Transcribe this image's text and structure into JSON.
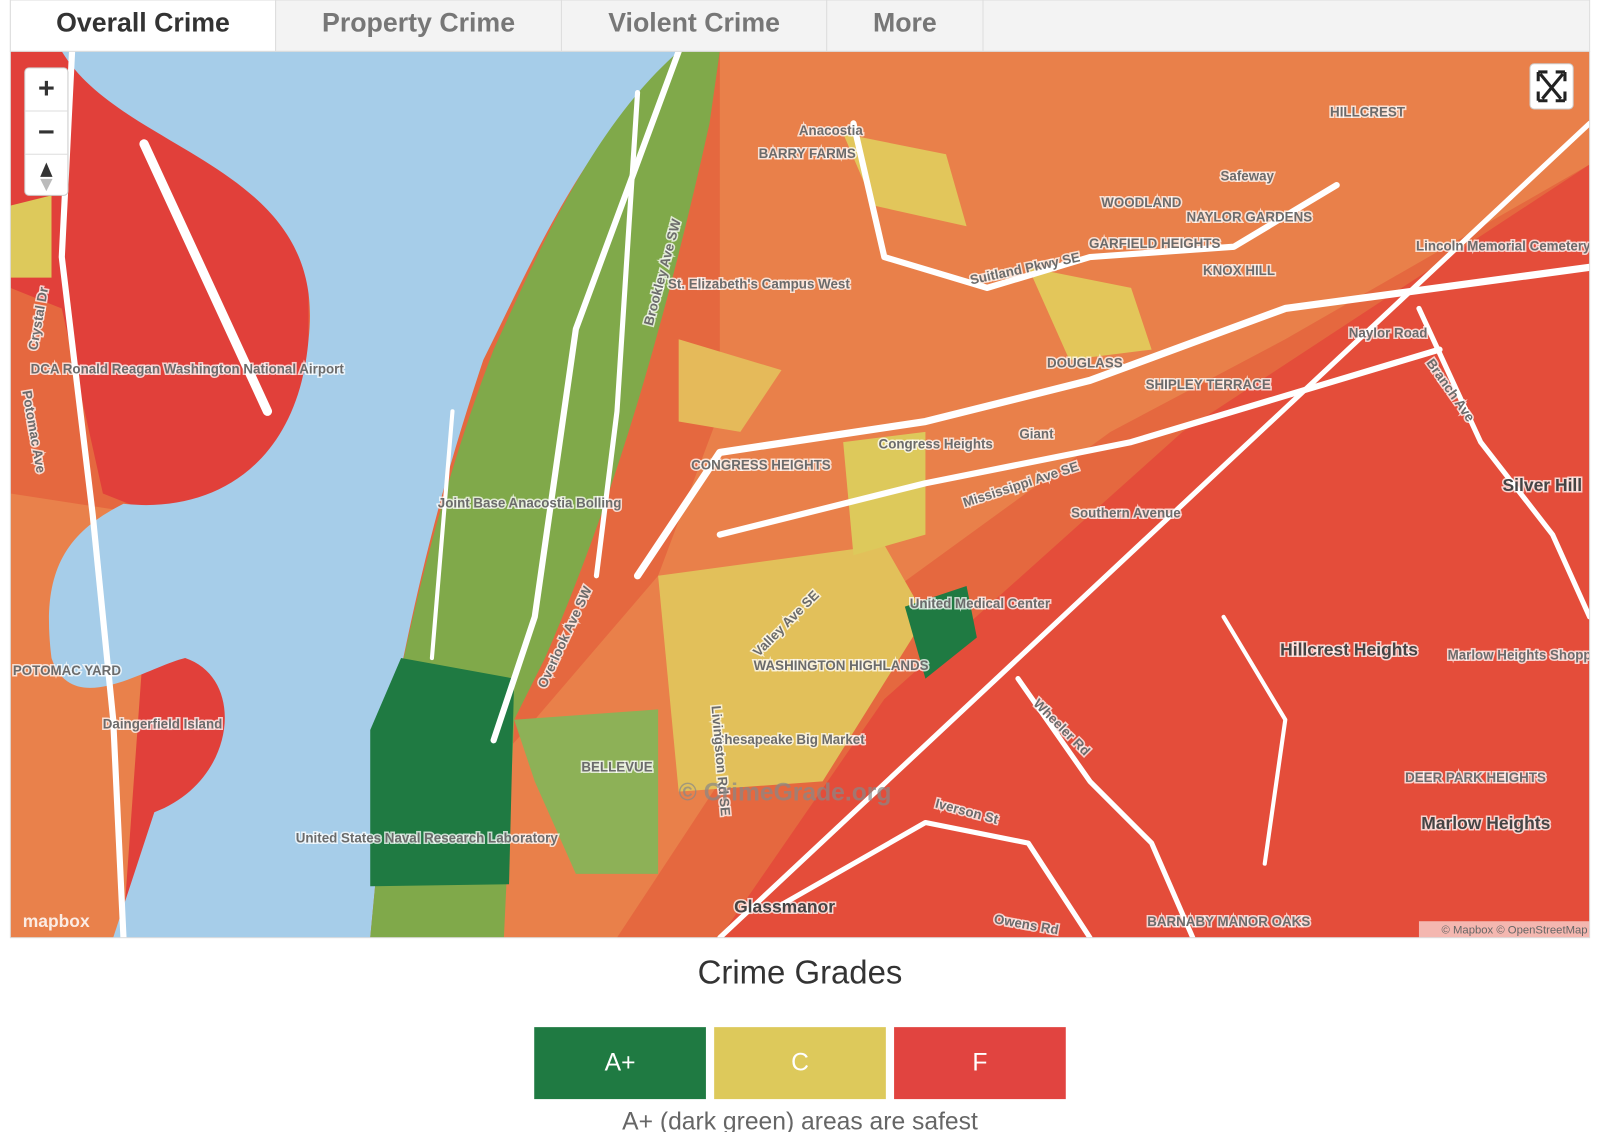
{
  "tabs": [
    "Overall Crime",
    "Property Crime",
    "Violent Crime",
    "More"
  ],
  "map": {
    "controls": {
      "zoom_in": "+",
      "zoom_out": "−"
    },
    "labels": [
      "Silver Hill",
      "Hillcrest Heights",
      "Marlow Heights",
      "Glassmanor",
      "WASHINGTON HIGHLANDS",
      "CONGRESS HEIGHTS",
      "BELLEVUE",
      "DOUGLASS",
      "SHIPLEY TERRACE",
      "WOODLAND",
      "GARFIELD HEIGHTS",
      "NAYLOR GARDENS",
      "KNOX HILL",
      "HILLCREST",
      "BARRY FARMS",
      "Anacostia",
      "St. Elizabeth's Campus West",
      "Joint Base Anacostia Bolling",
      "United States Naval Research Laboratory",
      "DCA Ronald Reagan Washington National Airport",
      "POTOMAC YARD",
      "Daingerfield Island",
      "Congress Heights",
      "Southern Avenue",
      "Naylor Road",
      "United Medical Center",
      "Chesapeake Big Market",
      "DEER PARK HEIGHTS",
      "BARNABY MANOR OAKS",
      "Suitland Pkwy SE",
      "Mississippi Ave SE",
      "Valley Ave SE",
      "Wheeler Rd",
      "Iverson St",
      "Owens Rd",
      "Lincoln Memorial Cemetery",
      "Marlow Heights Shopping Center",
      "Potomac Ave",
      "Crystal Dr",
      "Brookley Ave SW",
      "Overlook Ave SW",
      "Livingston Rd SE",
      "Branch Ave",
      "Safeway",
      "Giant"
    ],
    "watermark": "© CrimeGrade.org",
    "logo": "mapbox",
    "attribution": "© Mapbox © OpenStreetMap"
  },
  "legend": {
    "title": "Crime Grades",
    "grades": [
      {
        "label": "A+",
        "color": "#1f7a42"
      },
      {
        "label": "C",
        "color": "#ddc95b"
      },
      {
        "label": "F",
        "color": "#e14440"
      }
    ],
    "caption": "A+ (dark green) areas are safest"
  }
}
